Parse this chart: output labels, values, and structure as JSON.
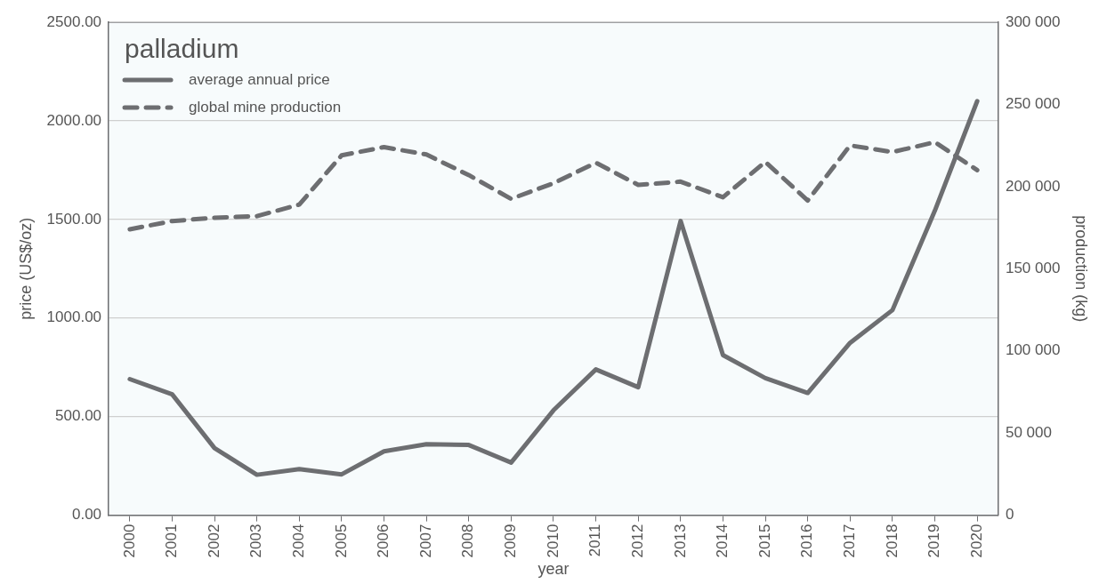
{
  "chart_data": {
    "type": "line",
    "legend_title": "palladium",
    "xlabel": "year",
    "ylabel": "price (US$/oz)",
    "y2label": "production (kg)",
    "categories": [
      "2000",
      "2001",
      "2002",
      "2003",
      "2004",
      "2005",
      "2006",
      "2007",
      "2008",
      "2009",
      "2010",
      "2011",
      "2012",
      "2013",
      "2014",
      "2015",
      "2016",
      "2017",
      "2018",
      "2019",
      "2020"
    ],
    "series": [
      {
        "name": "average annual price",
        "color": "#6d6e71",
        "line_style": "solid",
        "values": [
          690,
          613,
          340,
          205,
          234,
          207,
          324,
          360,
          356,
          267,
          532,
          739,
          649,
          1492,
          812,
          695,
          620,
          874,
          1040,
          1544,
          2100
        ]
      },
      {
        "name": "global mine production",
        "color": "#6d6e71",
        "line_style": "dashed",
        "axis": "y2",
        "values": [
          174000,
          179000,
          181000,
          182000,
          189000,
          219000,
          224000,
          219500,
          207000,
          192500,
          202000,
          214500,
          201000,
          203000,
          193500,
          215000,
          191500,
          225000,
          221000,
          227000,
          210000
        ]
      }
    ],
    "ylim": [
      0,
      2500
    ],
    "yticks": [
      {
        "value": 0,
        "label": "0.00"
      },
      {
        "value": 500,
        "label": "500.00"
      },
      {
        "value": 1000,
        "label": "1000.00"
      },
      {
        "value": 1500,
        "label": "1500.00"
      },
      {
        "value": 2000,
        "label": "2000.00"
      },
      {
        "value": 2500,
        "label": "2500.00"
      }
    ],
    "y2lim": [
      0,
      300000
    ],
    "y2ticks": [
      0,
      {
        "value": 50000,
        "label": "50 000"
      },
      {
        "value": 100000,
        "label": "100 000"
      },
      {
        "value": 150000,
        "label": "150 000"
      },
      {
        "value": 200000,
        "label": "200 000"
      },
      {
        "value": 250000,
        "label": "250 000"
      },
      {
        "value": 300000,
        "label": "300 000"
      }
    ],
    "grid": "y",
    "legend": "top left",
    "marker": "none"
  }
}
